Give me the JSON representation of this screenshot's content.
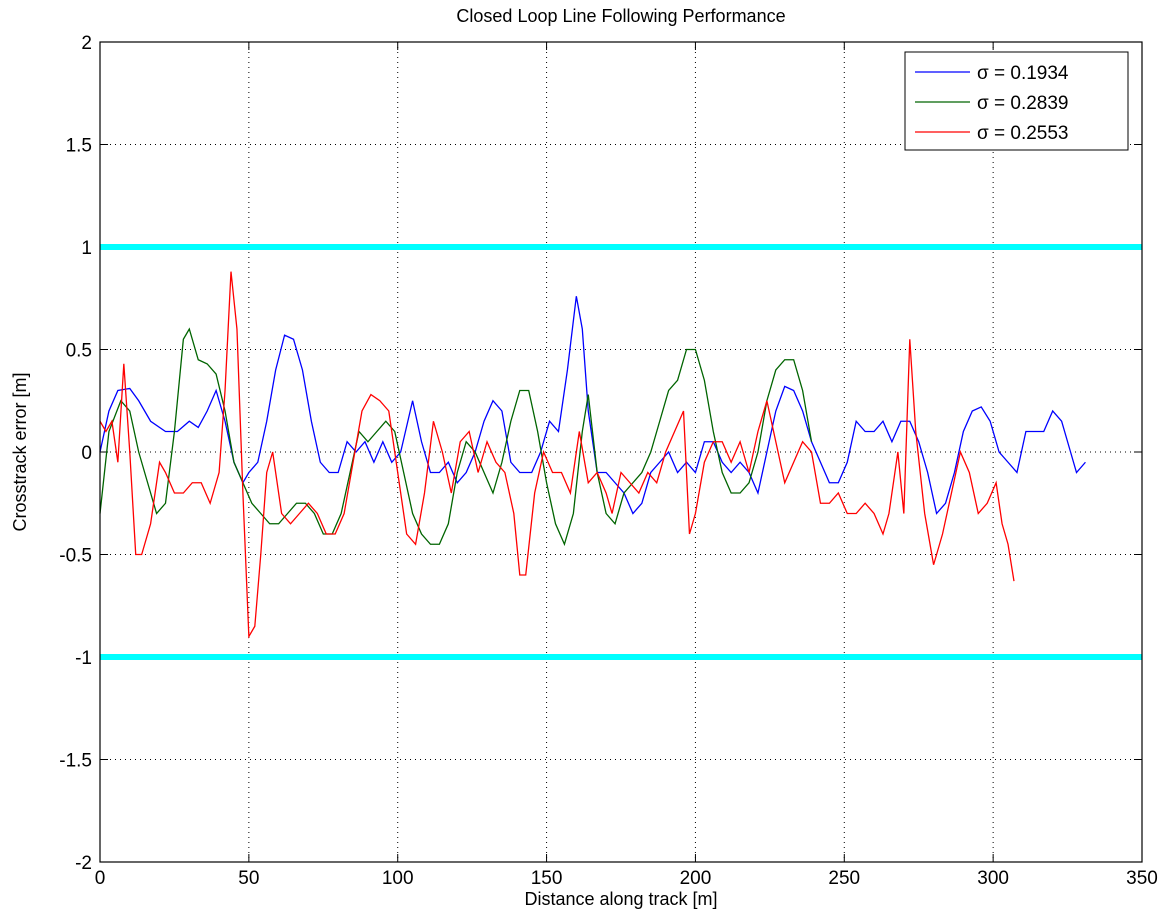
{
  "chart_data": {
    "type": "line",
    "title": "Closed Loop Line Following Performance",
    "x_label": "Distance along track [m]",
    "y_label": "Crosstrack error [m]",
    "xlim": [
      0,
      350
    ],
    "xticks": [
      0,
      50,
      100,
      150,
      200,
      250,
      300,
      350
    ],
    "ylim": [
      -2,
      2
    ],
    "yticks": [
      -2,
      -1.5,
      -1,
      -0.5,
      0,
      0.5,
      1,
      1.5,
      2
    ],
    "grid": true,
    "legend": "upper right",
    "reference_lines": {
      "values": [
        1,
        -1
      ],
      "color": "#00ffff"
    },
    "series": [
      {
        "name": "σ = 0.1934",
        "color": "#0000ff",
        "x": [
          0,
          3,
          6,
          10,
          13,
          17,
          22,
          26,
          30,
          33,
          36,
          39,
          42,
          45,
          48,
          50,
          53,
          56,
          59,
          62,
          65,
          68,
          71,
          74,
          77,
          80,
          83,
          86,
          89,
          92,
          95,
          98,
          101,
          105,
          108,
          111,
          114,
          117,
          120,
          123,
          126,
          129,
          132,
          135,
          138,
          141,
          145,
          148,
          151,
          154,
          157,
          160,
          162,
          164,
          167,
          170,
          173,
          176,
          179,
          182,
          185,
          188,
          191,
          194,
          197,
          200,
          203,
          206,
          209,
          212,
          215,
          218,
          221,
          224,
          227,
          230,
          233,
          236,
          239,
          242,
          245,
          248,
          251,
          254,
          257,
          260,
          263,
          266,
          269,
          272,
          275,
          278,
          281,
          284,
          287,
          290,
          293,
          296,
          299,
          302,
          305,
          308,
          311,
          314,
          317,
          320,
          323,
          326,
          328,
          331
        ],
        "values": [
          0.0,
          0.2,
          0.3,
          0.31,
          0.25,
          0.15,
          0.1,
          0.1,
          0.15,
          0.12,
          0.2,
          0.3,
          0.15,
          -0.05,
          -0.15,
          -0.1,
          -0.05,
          0.15,
          0.4,
          0.57,
          0.55,
          0.4,
          0.15,
          -0.05,
          -0.1,
          -0.1,
          0.05,
          0.0,
          0.05,
          -0.05,
          0.05,
          -0.05,
          0.0,
          0.25,
          0.05,
          -0.1,
          -0.1,
          -0.05,
          -0.15,
          -0.1,
          0.0,
          0.15,
          0.25,
          0.2,
          -0.05,
          -0.1,
          -0.1,
          0.0,
          0.15,
          0.1,
          0.4,
          0.76,
          0.6,
          0.2,
          -0.1,
          -0.1,
          -0.15,
          -0.2,
          -0.3,
          -0.25,
          -0.1,
          -0.05,
          0.0,
          -0.1,
          -0.05,
          -0.1,
          0.05,
          0.05,
          -0.05,
          -0.1,
          -0.05,
          -0.1,
          -0.2,
          0.0,
          0.2,
          0.32,
          0.3,
          0.2,
          0.05,
          -0.05,
          -0.15,
          -0.15,
          -0.05,
          0.15,
          0.1,
          0.1,
          0.15,
          0.05,
          0.15,
          0.15,
          0.05,
          -0.1,
          -0.3,
          -0.25,
          -0.1,
          0.1,
          0.2,
          0.22,
          0.15,
          0.0,
          -0.05,
          -0.1,
          0.1,
          0.1,
          0.1,
          0.2,
          0.15,
          0.0,
          -0.1,
          -0.05
        ]
      },
      {
        "name": "σ = 0.2839",
        "color": "#006400",
        "x": [
          0,
          3,
          7,
          10,
          13,
          16,
          19,
          22,
          25,
          28,
          30,
          33,
          36,
          39,
          42,
          45,
          48,
          51,
          54,
          57,
          60,
          63,
          66,
          69,
          72,
          75,
          78,
          81,
          84,
          87,
          90,
          93,
          96,
          99,
          102,
          105,
          108,
          111,
          114,
          117,
          120,
          123,
          126,
          129,
          132,
          135,
          138,
          141,
          144,
          147,
          150,
          153,
          156,
          159,
          162,
          164,
          167,
          170,
          173,
          176,
          179,
          182,
          185,
          188,
          191,
          194,
          197,
          200,
          203,
          206,
          209,
          212,
          215,
          218,
          221,
          224,
          227,
          230,
          233,
          236,
          239
        ],
        "values": [
          -0.3,
          0.1,
          0.25,
          0.2,
          0.0,
          -0.15,
          -0.3,
          -0.25,
          0.1,
          0.55,
          0.6,
          0.45,
          0.43,
          0.38,
          0.2,
          -0.05,
          -0.15,
          -0.25,
          -0.3,
          -0.35,
          -0.35,
          -0.3,
          -0.25,
          -0.25,
          -0.3,
          -0.4,
          -0.4,
          -0.3,
          -0.1,
          0.1,
          0.05,
          0.1,
          0.15,
          0.1,
          -0.1,
          -0.3,
          -0.4,
          -0.45,
          -0.45,
          -0.35,
          -0.1,
          0.05,
          0.0,
          -0.1,
          -0.2,
          -0.05,
          0.15,
          0.3,
          0.3,
          0.1,
          -0.15,
          -0.35,
          -0.45,
          -0.3,
          0.1,
          0.28,
          -0.1,
          -0.3,
          -0.35,
          -0.2,
          -0.15,
          -0.1,
          0.0,
          0.15,
          0.3,
          0.35,
          0.5,
          0.5,
          0.35,
          0.1,
          -0.1,
          -0.2,
          -0.2,
          -0.15,
          0.0,
          0.25,
          0.4,
          0.45,
          0.45,
          0.3,
          0.05
        ]
      },
      {
        "name": "σ = 0.2553",
        "color": "#ff0000",
        "x": [
          0,
          2,
          4,
          6,
          8,
          10,
          12,
          14,
          17,
          20,
          22,
          25,
          28,
          31,
          34,
          37,
          40,
          42,
          44,
          46,
          48,
          50,
          52,
          54,
          56,
          58,
          61,
          64,
          67,
          70,
          73,
          76,
          79,
          82,
          85,
          88,
          91,
          94,
          97,
          100,
          103,
          106,
          109,
          112,
          115,
          118,
          121,
          124,
          127,
          130,
          133,
          136,
          139,
          141,
          143,
          146,
          149,
          152,
          155,
          158,
          161,
          164,
          167,
          170,
          172,
          175,
          178,
          181,
          184,
          187,
          190,
          193,
          196,
          198,
          200,
          203,
          206,
          209,
          212,
          215,
          218,
          221,
          224,
          227,
          230,
          233,
          236,
          239,
          242,
          245,
          248,
          251,
          254,
          257,
          260,
          263,
          265,
          268,
          270,
          272,
          274,
          277,
          280,
          283,
          286,
          289,
          292,
          295,
          298,
          301,
          303,
          305,
          307
        ],
        "values": [
          0.15,
          0.1,
          0.15,
          -0.05,
          0.43,
          0.0,
          -0.5,
          -0.5,
          -0.35,
          -0.05,
          -0.1,
          -0.2,
          -0.2,
          -0.15,
          -0.15,
          -0.25,
          -0.1,
          0.3,
          0.88,
          0.6,
          -0.2,
          -0.9,
          -0.85,
          -0.5,
          -0.1,
          0.0,
          -0.3,
          -0.35,
          -0.3,
          -0.25,
          -0.3,
          -0.4,
          -0.4,
          -0.3,
          -0.05,
          0.2,
          0.28,
          0.25,
          0.2,
          -0.1,
          -0.4,
          -0.45,
          -0.2,
          0.15,
          0.0,
          -0.2,
          0.05,
          0.1,
          -0.1,
          0.05,
          -0.05,
          -0.1,
          -0.3,
          -0.6,
          -0.6,
          -0.2,
          0.0,
          -0.1,
          -0.1,
          -0.2,
          0.1,
          -0.15,
          -0.1,
          -0.2,
          -0.3,
          -0.1,
          -0.15,
          -0.2,
          -0.1,
          -0.15,
          0.0,
          0.1,
          0.2,
          -0.4,
          -0.3,
          -0.05,
          0.05,
          0.05,
          -0.05,
          0.05,
          -0.1,
          0.1,
          0.25,
          0.05,
          -0.15,
          -0.05,
          0.05,
          0.0,
          -0.25,
          -0.25,
          -0.2,
          -0.3,
          -0.3,
          -0.25,
          -0.3,
          -0.4,
          -0.3,
          0.0,
          -0.3,
          0.55,
          0.1,
          -0.3,
          -0.55,
          -0.4,
          -0.2,
          0.0,
          -0.1,
          -0.3,
          -0.25,
          -0.15,
          -0.35,
          -0.45,
          -0.63
        ]
      }
    ]
  }
}
